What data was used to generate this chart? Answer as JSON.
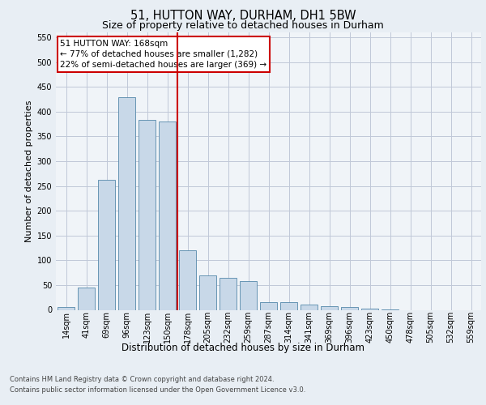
{
  "title1": "51, HUTTON WAY, DURHAM, DH1 5BW",
  "title2": "Size of property relative to detached houses in Durham",
  "xlabel": "Distribution of detached houses by size in Durham",
  "ylabel": "Number of detached properties",
  "categories": [
    "14sqm",
    "41sqm",
    "69sqm",
    "96sqm",
    "123sqm",
    "150sqm",
    "178sqm",
    "205sqm",
    "232sqm",
    "259sqm",
    "287sqm",
    "314sqm",
    "341sqm",
    "369sqm",
    "396sqm",
    "423sqm",
    "450sqm",
    "478sqm",
    "505sqm",
    "532sqm",
    "559sqm"
  ],
  "values": [
    5,
    45,
    262,
    430,
    383,
    380,
    120,
    70,
    65,
    58,
    15,
    15,
    10,
    8,
    5,
    2,
    1,
    0,
    0,
    0,
    0
  ],
  "bar_color": "#c8d8e8",
  "bar_edge_color": "#5588aa",
  "vline_x": 5.5,
  "vline_color": "#cc0000",
  "annotation_text": "51 HUTTON WAY: 168sqm\n← 77% of detached houses are smaller (1,282)\n22% of semi-detached houses are larger (369) →",
  "annotation_box_color": "#ffffff",
  "annotation_box_edge": "#cc0000",
  "footer1": "Contains HM Land Registry data © Crown copyright and database right 2024.",
  "footer2": "Contains public sector information licensed under the Open Government Licence v3.0.",
  "ylim": [
    0,
    560
  ],
  "yticks": [
    0,
    50,
    100,
    150,
    200,
    250,
    300,
    350,
    400,
    450,
    500,
    550
  ],
  "background_color": "#e8eef4",
  "plot_bg_color": "#f0f4f8",
  "grid_color": "#c0c8d8",
  "title1_fontsize": 10.5,
  "title2_fontsize": 9,
  "ylabel_fontsize": 8,
  "xlabel_fontsize": 8.5,
  "tick_fontsize": 7,
  "footer_fontsize": 6,
  "ann_fontsize": 7.5
}
